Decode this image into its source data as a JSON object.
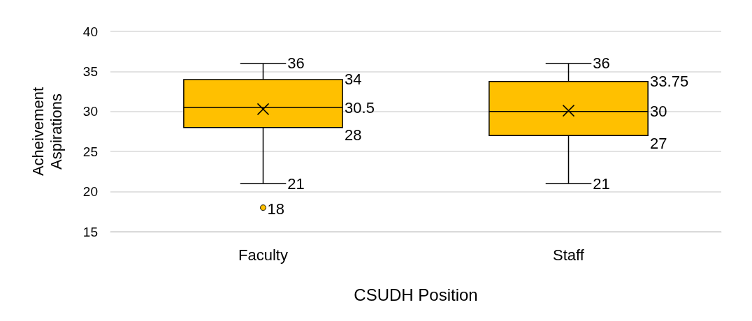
{
  "chart_data": {
    "type": "box",
    "xlabel": "CSUDH Position",
    "ylabel": "Acheivement\nAspirations",
    "categories": [
      "Faculty",
      "Staff"
    ],
    "boxes": [
      {
        "low": 21,
        "q1": 28,
        "median": 30.5,
        "q3": 34,
        "high": 36,
        "mean": 30.3,
        "outliers": [
          18
        ]
      },
      {
        "low": 21,
        "q1": 27,
        "median": 30,
        "q3": 33.75,
        "high": 36,
        "mean": 30.1
      }
    ],
    "annotations": [
      "36",
      "34",
      "30.5",
      "28",
      "21",
      "18",
      "36",
      "33.75",
      "30",
      "27",
      "21"
    ],
    "color": "#ffc000",
    "ylim": [
      15,
      40
    ],
    "yticks": [
      15,
      20,
      25,
      30,
      35,
      40
    ],
    "grid": "y",
    "marker": "cross"
  }
}
